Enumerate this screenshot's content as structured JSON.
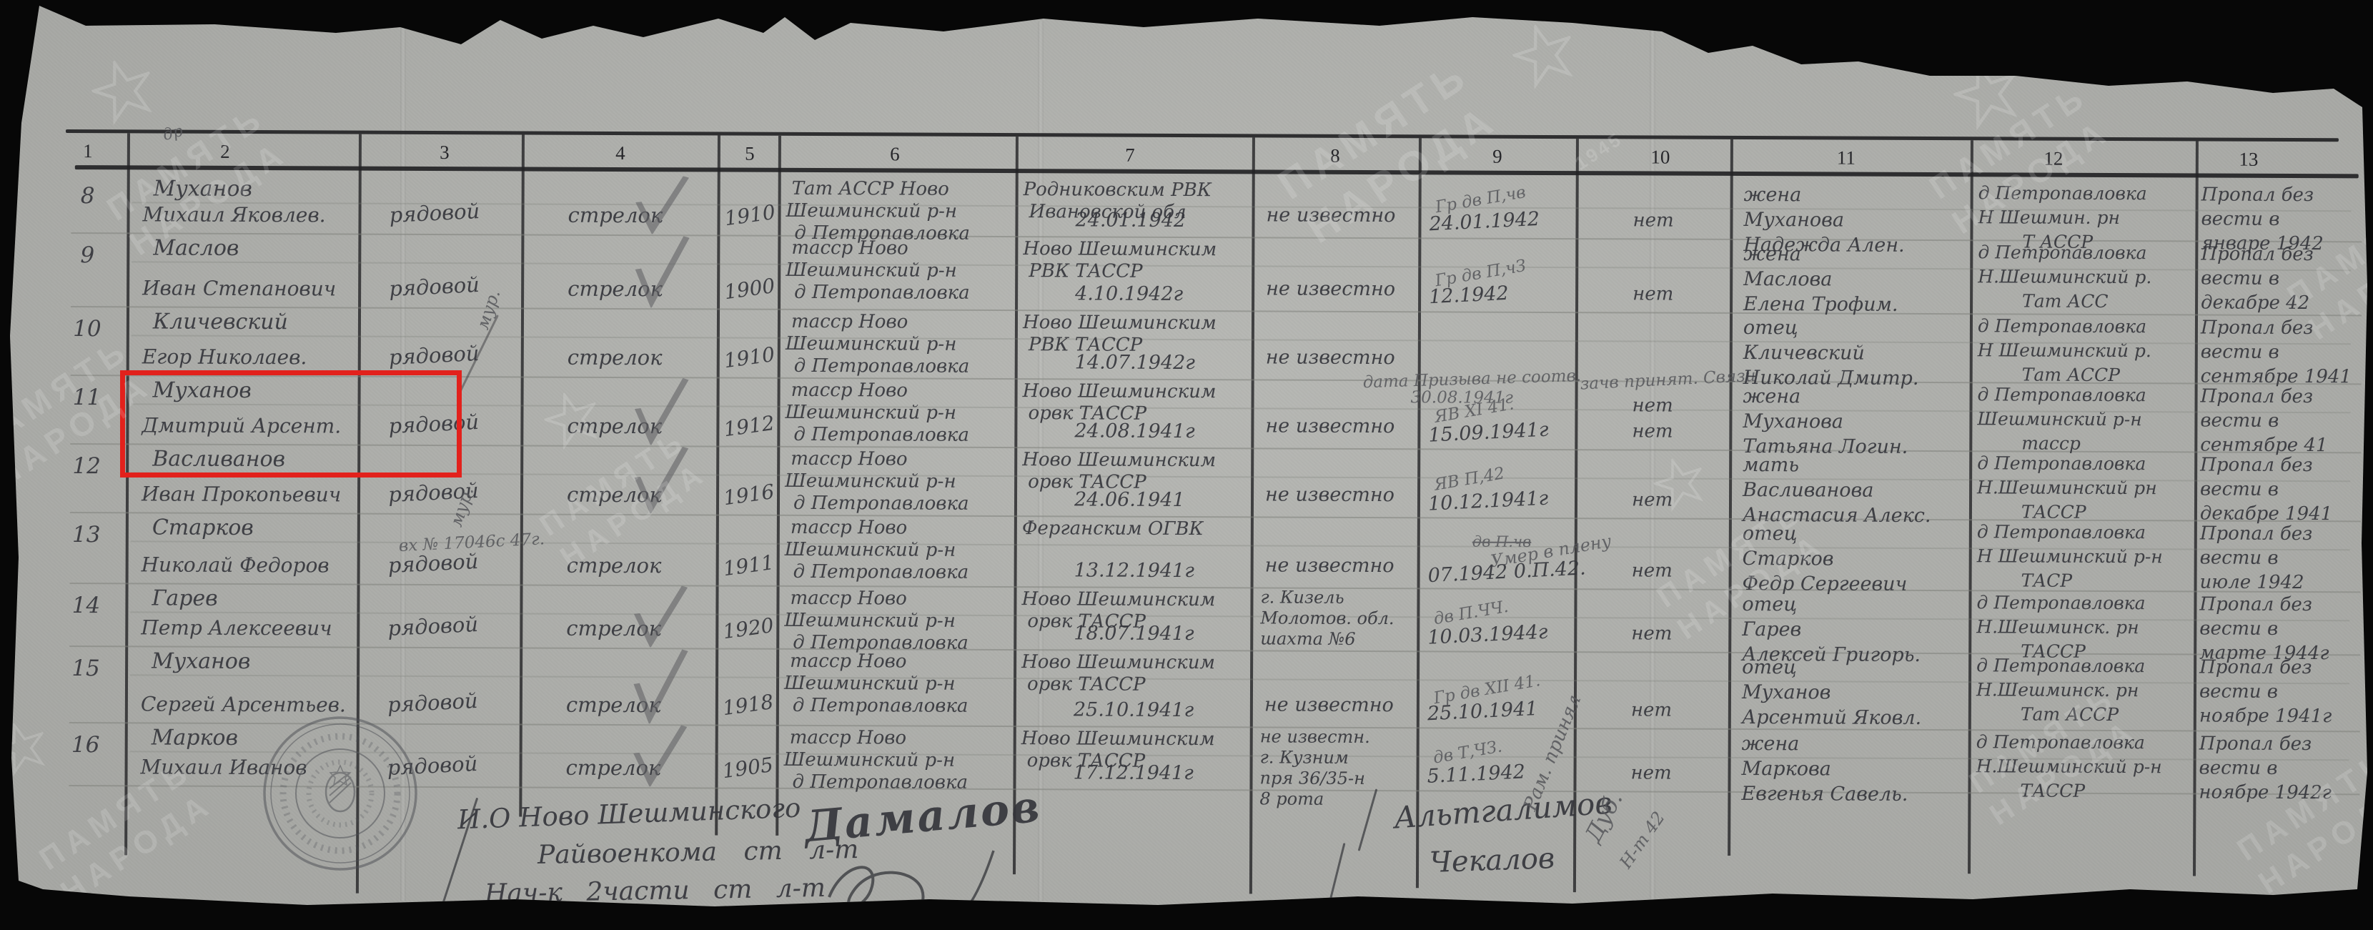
{
  "watermark": {
    "line1": "ПАМЯТЬ",
    "line2": "НАРОДА",
    "years": "1945"
  },
  "highlight_color": "#e2211c",
  "table": {
    "column_numbers": [
      "1",
      "2",
      "3",
      "4",
      "5",
      "6",
      "7",
      "8",
      "9",
      "10",
      "11",
      "12",
      "13"
    ],
    "rows": [
      {
        "num": "8",
        "name": [
          "Муханов",
          "Михаил Яковлев."
        ],
        "rank": "рядовой",
        "check": true,
        "spec": "стрелок",
        "year": "1910",
        "born": [
          "Тат АССР  Ново",
          "Шешминский р-н",
          "д Петропавловка"
        ],
        "drafted": [
          "Родниковским РВК",
          "Ивановской обл",
          "24.01.1942"
        ],
        "info": [
          "не известно"
        ],
        "note": "Гр дв П,чв",
        "date": "24.01.1942",
        "none": "нет",
        "kin": [
          "жена",
          "Муханова",
          "Надежда Ален."
        ],
        "addr": [
          "д Петропавловка",
          "Н Шешмин. рн",
          "Т АССР"
        ],
        "fate": [
          "Пропал без",
          "вести в",
          "январе 1942"
        ]
      },
      {
        "num": "9",
        "name": [
          "Маслов",
          "Иван Степанович"
        ],
        "rank": "рядовой",
        "check": true,
        "spec": "стрелок",
        "year": "1900",
        "born": [
          "тасср  Ново",
          "Шешминский р-н",
          "д Петропавловка"
        ],
        "drafted": [
          "Ново Шешминским",
          "РВК  ТАССР",
          "4.10.1942г"
        ],
        "info": [
          "не известно"
        ],
        "note": "Гр дв П,чЗ",
        "date": "12.1942",
        "none": "нет",
        "kin": [
          "жена",
          "Маслова",
          "Елена Трофим."
        ],
        "addr": [
          "д Петропавловка",
          "Н.Шешминский р.",
          "Тат АСС"
        ],
        "fate": [
          "Пропал без",
          "вести в",
          "декабре 42"
        ]
      },
      {
        "num": "10",
        "name": [
          "Кличевский",
          "Егор Николаев."
        ],
        "rank": "рядовой",
        "check": false,
        "rank_note": "мур.",
        "spec": "стрелок",
        "year": "1910",
        "born": [
          "тасср  Ново",
          "Шешминский р-н",
          "д Петропавловка"
        ],
        "drafted": [
          "Ново Шешминским",
          "РВК  ТАССР",
          "14.07.1942г"
        ],
        "info": [
          "не известно"
        ],
        "span_note": [
          "дата Призыва не соотв.",
          "30.08.1941г"
        ],
        "col10_note": "зачв принят. Связи",
        "none": "нет",
        "kin": [
          "отец",
          "Кличевский",
          "Николай Дмитр."
        ],
        "addr": [
          "д Петропавловка",
          "Н Шешминский р.",
          "Тат АССР"
        ],
        "fate": [
          "Пропал без",
          "вести в",
          "сентябре 1941"
        ]
      },
      {
        "num": "11",
        "name": [
          "Муханов",
          "Дмитрий Арсент."
        ],
        "rank": "рядовой",
        "check": true,
        "spec": "стрелок",
        "year": "1912",
        "born": [
          "тасср  Ново",
          "Шешминский р-н",
          "д Петропавловка"
        ],
        "drafted": [
          "Ново Шешминским",
          "орвк  ТАССР",
          "24.08.1941г"
        ],
        "info": [
          "не известно"
        ],
        "note": "ЯВ XI 41.",
        "date": "15.09.1941г",
        "none": "нет",
        "kin": [
          "жена",
          "Муханова",
          "Татьяна Логин."
        ],
        "addr": [
          "д Петропавловка",
          "Шешминский р-н",
          "тасср"
        ],
        "fate": [
          "Пропал без",
          "вести в",
          "сентябре 41"
        ],
        "highlight": true
      },
      {
        "num": "12",
        "name": [
          "Васливанов",
          "Иван Прокопьевич"
        ],
        "rank": "рядовой",
        "check": true,
        "spec": "стрелок",
        "year": "1916",
        "born": [
          "тасср  Ново",
          "Шешминский р-н",
          "д Петропавловка"
        ],
        "drafted": [
          "Ново Шешминским",
          "орвк  ТАССР",
          "24.06.1941"
        ],
        "info": [
          "не известно"
        ],
        "note": "ЯВ П,42",
        "date": "10.12.1941г",
        "none": "нет",
        "kin": [
          "мать",
          "Васливанова",
          "Анастасия Алекс."
        ],
        "addr": [
          "д Петропавловка",
          "Н.Шешминский рн",
          "ТАССР"
        ],
        "fate": [
          "Пропал без",
          "вести в",
          "декабре 1941"
        ]
      },
      {
        "num": "13",
        "name": [
          "Старков",
          "Николай Федоров"
        ],
        "rank": "рядовой",
        "check": false,
        "rank_note": "мур.",
        "rank_note2": "вх № 17046с 47г.",
        "spec": "стрелок",
        "year": "1911",
        "born": [
          "тасср  Ново",
          "Шешминский р-н",
          "д Петропавловка"
        ],
        "drafted": [
          "Ферганским  ОГВК",
          "",
          "13.12.1941г"
        ],
        "info": [
          "не известно"
        ],
        "death_note": "Умер в плену",
        "struck": "дв П.чв",
        "date": "07.1942 0.П.42.",
        "none": "нет",
        "kin": [
          "отец",
          "Старков",
          "Федр Сергеевич"
        ],
        "addr": [
          "д Петропавловка",
          "Н Шешминский р-н",
          "ТАСР"
        ],
        "fate": [
          "Пропал без",
          "вести в",
          "июле 1942"
        ]
      },
      {
        "num": "14",
        "name": [
          "Гарев",
          "Петр Алексеевич"
        ],
        "rank": "рядовой",
        "check": true,
        "spec": "стрелок",
        "year": "1920",
        "born": [
          "тасср  Ново",
          "Шешминский р-н",
          "д Петропавловка"
        ],
        "drafted": [
          "Ново Шешминским",
          "орвк  ТАССР",
          "18.07.1941г"
        ],
        "info": [
          "г. Кизель",
          "Молотов. обл.",
          "шахта №6"
        ],
        "note": "дв П.ЧЧ.",
        "date": "10.03.1944г",
        "none": "нет",
        "kin": [
          "отец",
          "Гарев",
          "Алексей Григорь."
        ],
        "addr": [
          "д Петропавловка",
          "Н.Шешминск. рн",
          "ТАССР"
        ],
        "fate": [
          "Пропал без",
          "вести в",
          "марте 1944г"
        ]
      },
      {
        "num": "15",
        "name": [
          "Муханов",
          "Сергей Арсентьев."
        ],
        "rank": "рядовой",
        "check": true,
        "spec": "стрелок",
        "year": "1918",
        "born": [
          "тасср  Ново",
          "Шешминский р-н",
          "д Петропавловка"
        ],
        "drafted": [
          "Ново Шешминским",
          "орвк  ТАССР",
          "25.10.1941г"
        ],
        "info": [
          "не известно"
        ],
        "note": "Гр дв XII 41.",
        "date": "25.10.1941",
        "none": "нет",
        "kin": [
          "отец",
          "Муханов",
          "Арсентий Яковл."
        ],
        "addr": [
          "д Петропавловка",
          "Н.Шешминск. рн",
          "Тат АССР"
        ],
        "fate": [
          "Пропал без",
          "вести в",
          "ноябре 1941г"
        ]
      },
      {
        "num": "16",
        "name": [
          "Марков",
          "Михаил Иванов"
        ],
        "rank": "рядовой",
        "check": true,
        "spec": "стрелок",
        "year": "1905",
        "born": [
          "тасср  Ново",
          "Шешминский р-н",
          "д Петропавловка"
        ],
        "drafted": [
          "Ново Шешминским",
          "орвк  ТАССР",
          "17.12.1941г"
        ],
        "info": [
          "не известн.",
          "г. Кузним",
          "пря 36/35-н",
          "8 рота"
        ],
        "note": "дв Т,ЧЗ.",
        "date": "5.11.1942",
        "none": "нет",
        "kin": [
          "жена",
          "Маркова",
          "Евгенья Савель."
        ],
        "addr": [
          "д Петропавловка",
          "Н.Шешминский р-н",
          "ТАССР"
        ],
        "fate": [
          "Пропал без",
          "вести в",
          "ноябре 1942г"
        ]
      }
    ]
  },
  "footer": {
    "io_line1": "И.О Ново Шешминского",
    "io_line2": "Райвоенкома   ст   л-т",
    "chief_line": "Нач-к  2части   ст   л-т",
    "sig_commissar": "Дамалов",
    "sig_right1": "Альтгалимов",
    "sig_right2": "Чекалов",
    "diag_note1": "Рам. принял",
    "diag_note2": "Дуб.",
    "diag_note3": "Н-т 42",
    "scribble": "др"
  }
}
